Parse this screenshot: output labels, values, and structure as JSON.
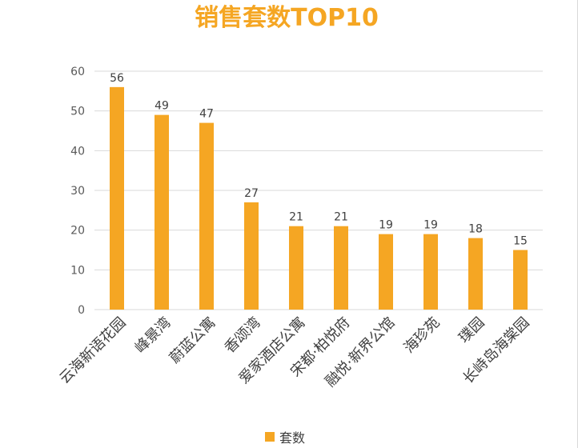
{
  "chart_data": {
    "type": "bar",
    "title": "销售套数TOP10",
    "categories": [
      "云海新语花园",
      "峰景湾",
      "蔚蓝公寓",
      "香颂湾",
      "爱家酒店公寓",
      "宋都·柏悦府",
      "融悦·新界公馆",
      "海珍苑",
      "璞园",
      "长峙岛海棠园"
    ],
    "series": [
      {
        "name": "套数",
        "values": [
          56,
          49,
          47,
          27,
          21,
          21,
          19,
          19,
          18,
          15
        ]
      }
    ],
    "yticks": [
      0,
      10,
      20,
      30,
      40,
      50,
      60
    ],
    "ylim": [
      0,
      60
    ],
    "grid": true,
    "legend_position": "bottom",
    "colors": {
      "bar": "#f5a623",
      "title": "#f5a623",
      "grid": "#d9d9d9"
    }
  }
}
